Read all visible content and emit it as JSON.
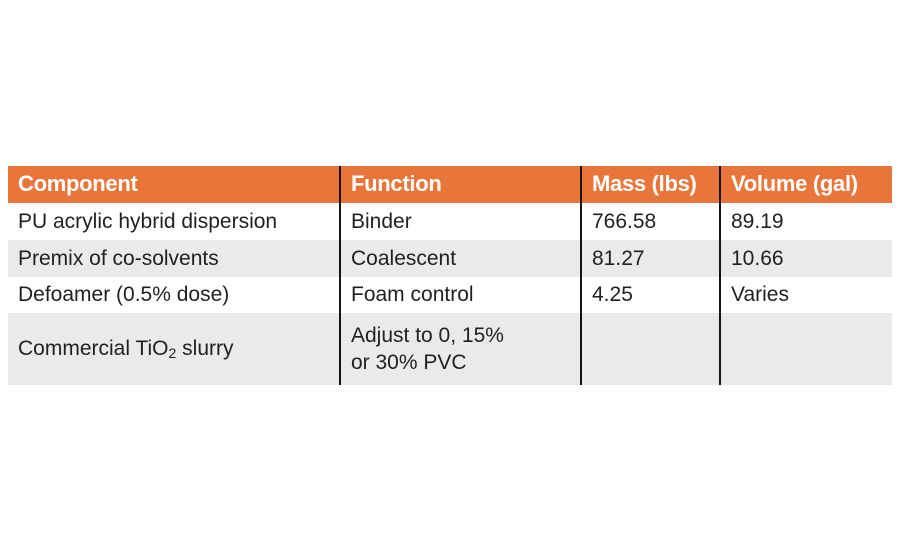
{
  "colors": {
    "header_bg": "#E8763B",
    "header_text": "#FFFFFF",
    "row_alt_bg": "#E9EAEB",
    "body_text": "#231F20",
    "column_divider": "#161412",
    "page_bg": "#FFFFFF"
  },
  "table": {
    "headers": [
      "Component",
      "Function",
      "Mass (lbs)",
      "Volume (gal)"
    ],
    "rows": [
      {
        "component": "PU acrylic hybrid dispersion",
        "function": "Binder",
        "mass": "766.58",
        "volume": "89.19"
      },
      {
        "component": "Premix of co-solvents",
        "function": "Coalescent",
        "mass": "81.27",
        "volume": "10.66"
      },
      {
        "component": "Defoamer (0.5% dose)",
        "function": "Foam control",
        "mass": "4.25",
        "volume": "Varies"
      },
      {
        "component_pre": "Commercial TiO",
        "component_sub": "2",
        "component_post": " slurry",
        "function_line1": "Adjust to 0, 15%",
        "function_line2": "or 30% PVC",
        "mass": "",
        "volume": ""
      }
    ]
  },
  "chart_data": {
    "type": "table",
    "columns": [
      "Component",
      "Function",
      "Mass (lbs)",
      "Volume (gal)"
    ],
    "rows": [
      [
        "PU acrylic hybrid dispersion",
        "Binder",
        "766.58",
        "89.19"
      ],
      [
        "Premix of co-solvents",
        "Coalescent",
        "81.27",
        "10.66"
      ],
      [
        "Defoamer (0.5% dose)",
        "Foam control",
        "4.25",
        "Varies"
      ],
      [
        "Commercial TiO2 slurry",
        "Adjust to 0, 15% or 30% PVC",
        "",
        ""
      ]
    ],
    "layout_hints": {
      "header_style": "orange background, white bold text",
      "row_striping": "alternating white and light gray",
      "column_dividers": "black vertical rules between all columns",
      "outer_border": "none"
    }
  }
}
